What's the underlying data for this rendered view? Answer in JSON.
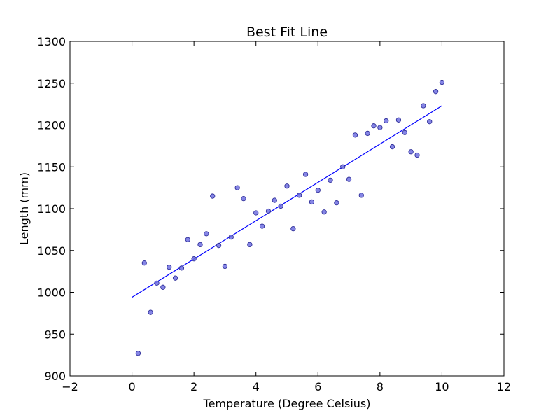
{
  "chart_data": {
    "type": "scatter",
    "title": "Best Fit Line",
    "xlabel": "Temperature (Degree Celsius)",
    "ylabel": "Length (mm)",
    "xlim": [
      -2,
      12
    ],
    "ylim": [
      900,
      1300
    ],
    "grid": false,
    "legend": "none",
    "x_ticks": [
      -2,
      0,
      2,
      4,
      6,
      8,
      10,
      12
    ],
    "y_ticks": [
      900,
      950,
      1000,
      1050,
      1100,
      1150,
      1200,
      1250,
      1300
    ],
    "x_tick_labels": [
      "−2",
      "0",
      "2",
      "4",
      "6",
      "8",
      "10",
      "12"
    ],
    "y_tick_labels": [
      "900",
      "950",
      "1000",
      "1050",
      "1100",
      "1150",
      "1200",
      "1250",
      "1300"
    ],
    "colors": {
      "points_fill": "#7070e0",
      "points_stroke": "#30309a",
      "line": "#0000ff"
    },
    "series": [
      {
        "type": "scatter",
        "x": [
          0.2,
          0.4,
          0.6,
          0.8,
          1.0,
          1.2,
          1.4,
          1.6,
          1.8,
          2.0,
          2.2,
          2.4,
          2.6,
          2.8,
          3.0,
          3.2,
          3.4,
          3.6,
          3.8,
          4.0,
          4.2,
          4.4,
          4.6,
          4.8,
          5.0,
          5.2,
          5.4,
          5.6,
          5.8,
          6.0,
          6.2,
          6.4,
          6.6,
          6.8,
          7.0,
          7.2,
          7.4,
          7.6,
          7.8,
          8.0,
          8.2,
          8.4,
          8.6,
          8.8,
          9.0,
          9.2,
          9.4,
          9.6,
          9.8,
          10.0
        ],
        "y": [
          927,
          1035,
          976,
          1011,
          1006,
          1030,
          1017,
          1029,
          1063,
          1040,
          1057,
          1070,
          1115,
          1056,
          1031,
          1066,
          1125,
          1112,
          1057,
          1095,
          1079,
          1097,
          1110,
          1103,
          1127,
          1076,
          1116,
          1141,
          1108,
          1122,
          1096,
          1134,
          1107,
          1150,
          1135,
          1188,
          1116,
          1190,
          1199,
          1197,
          1205,
          1174,
          1206,
          1191,
          1168,
          1164,
          1223,
          1204,
          1240,
          1251
        ]
      },
      {
        "type": "line",
        "x": [
          0.0,
          10.0
        ],
        "y": [
          994,
          1223
        ]
      }
    ]
  }
}
